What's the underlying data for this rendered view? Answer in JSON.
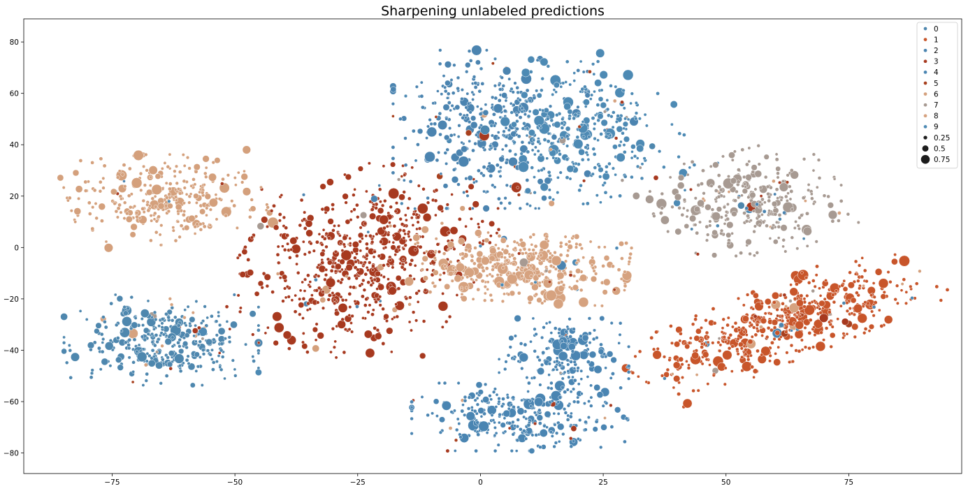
{
  "chart_data": {
    "type": "scatter",
    "title": "Sharpening unlabeled predictions",
    "xlabel": "",
    "ylabel": "",
    "xlim": [
      -93,
      98
    ],
    "ylim": [
      -88,
      89
    ],
    "xticks": [
      -75,
      -50,
      -25,
      0,
      25,
      50,
      75
    ],
    "yticks": [
      -80,
      -60,
      -40,
      -20,
      0,
      20,
      40,
      60,
      80
    ],
    "grid": false,
    "legend_position": "top-right",
    "colors": {
      "0": "#4e87ae",
      "1": "#c8552a",
      "2": "#4b84b0",
      "3": "#a7391f",
      "4": "#4a85b2",
      "5": "#a8401e",
      "6": "#d4a07c",
      "7": "#a79a92",
      "8": "#d6a27f",
      "9": "#4d8ab4"
    },
    "legend": {
      "hue_entries": [
        "0",
        "1",
        "2",
        "3",
        "4",
        "5",
        "6",
        "7",
        "8",
        "9"
      ],
      "size_entries": [
        "0.25",
        "0.5",
        "0.75"
      ],
      "size_values": [
        0.25,
        0.5,
        0.75
      ],
      "size_color": "#1c1c1c"
    },
    "clusters": [
      {
        "label": "6",
        "x": -64,
        "y": 19,
        "sx": 9,
        "sy": 8,
        "n": 320,
        "angle": 10
      },
      {
        "label": "0",
        "x": -65,
        "y": -36,
        "sx": 9,
        "sy": 8,
        "n": 360,
        "angle": 0
      },
      {
        "label": "3",
        "x": -24,
        "y": -5,
        "sx": 11,
        "sy": 17,
        "n": 680,
        "angle": -20
      },
      {
        "label": "8",
        "x": 8,
        "y": -8,
        "sx": 10,
        "sy": 6,
        "n": 430,
        "angle": -5
      },
      {
        "label": "2",
        "x": 2,
        "y": 46,
        "sx": 9,
        "sy": 14,
        "n": 360,
        "angle": 0
      },
      {
        "label": "9",
        "x": 21,
        "y": 46,
        "sx": 9,
        "sy": 13,
        "n": 330,
        "angle": 10
      },
      {
        "label": "7",
        "x": 55,
        "y": 17,
        "sx": 9,
        "sy": 9,
        "n": 330,
        "angle": 25
      },
      {
        "label": "1",
        "x": 61,
        "y": -30,
        "sx": 16,
        "sy": 6,
        "n": 560,
        "angle": 38
      },
      {
        "label": "4",
        "x": 8,
        "y": -66,
        "sx": 10,
        "sy": 6,
        "n": 300,
        "angle": 0
      },
      {
        "label": "4",
        "x": 17,
        "y": -43,
        "sx": 6,
        "sy": 7,
        "n": 200,
        "angle": 0
      }
    ],
    "marker_size_range": [
      0.1,
      0.8
    ]
  }
}
